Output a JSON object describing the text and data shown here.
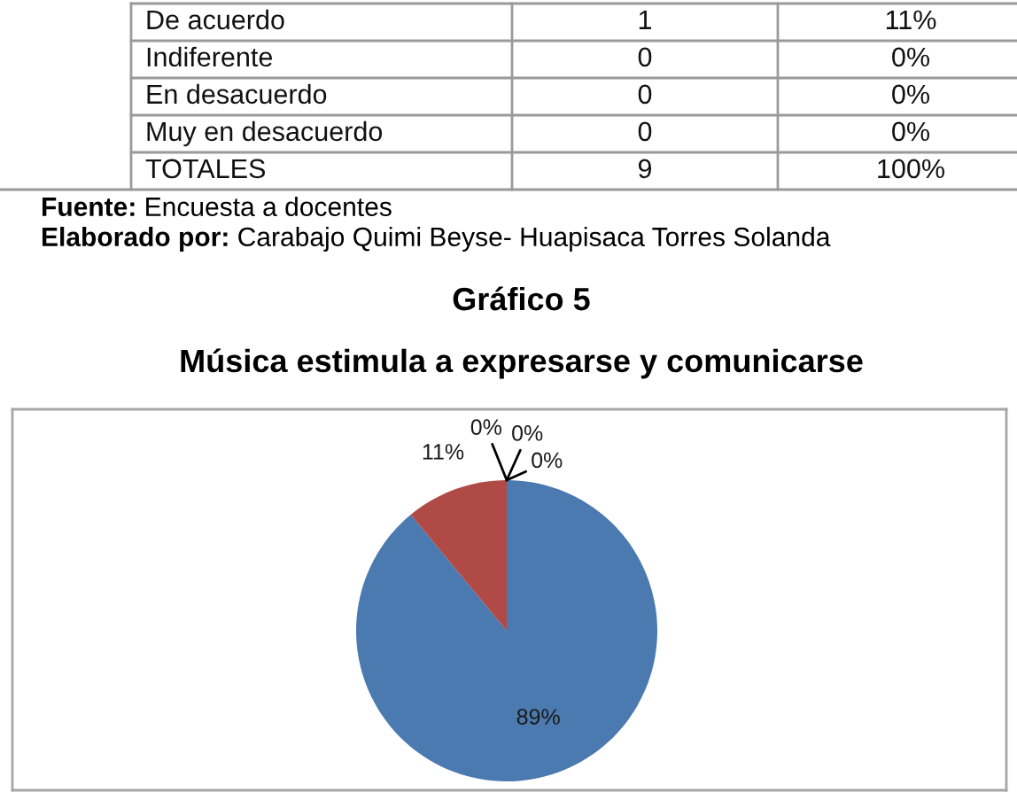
{
  "chart_data": [
    {
      "type": "other",
      "categories": [
        "De acuerdo",
        "Indiferente",
        "En desacuerdo",
        "Muy en desacuerdo",
        "TOTALES"
      ],
      "data_labels": true,
      "series": [
        {
          "values": [
            1,
            0,
            0,
            0,
            9
          ]
        },
        {
          "values": [
            11,
            0,
            0,
            0,
            100
          ],
          "value_labels": [
            "11%",
            "0%",
            "0%",
            "0%",
            "100%"
          ]
        }
      ],
      "annotations": [
        "Fuente: Encuesta a docentes",
        "Elaborado por: Carabajo Quimi Beyse- Huapisaca Torres Solanda"
      ]
    },
    {
      "type": "pie",
      "title": "Gráfico 5",
      "subtitle": "Música estimula a expresarse y comunicarse",
      "values": [
        89,
        11,
        0,
        0,
        0
      ],
      "colors": [
        "#4a7aaf",
        "#b04a46",
        "#9bbb59",
        "#8064a2",
        "#4bacc6"
      ],
      "value_labels": [
        "89%",
        "11%",
        "0%",
        "0%",
        "0%"
      ]
    }
  ]
}
